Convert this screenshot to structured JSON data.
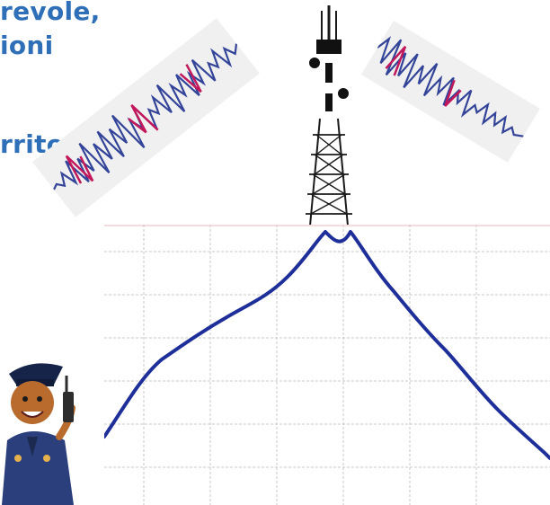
{
  "headline": {
    "line1": "revole,",
    "line2": "ioni",
    "line3": "rritorio"
  },
  "colors": {
    "text": "#2f6fb7",
    "wave_blue": "#334499",
    "wave_red": "#c2185b",
    "curve": "#1f2f9a",
    "grid": "#c9c9c9"
  },
  "icons": {
    "tower": "cell-tower-icon",
    "officer": "police-officer-radio-icon"
  }
}
